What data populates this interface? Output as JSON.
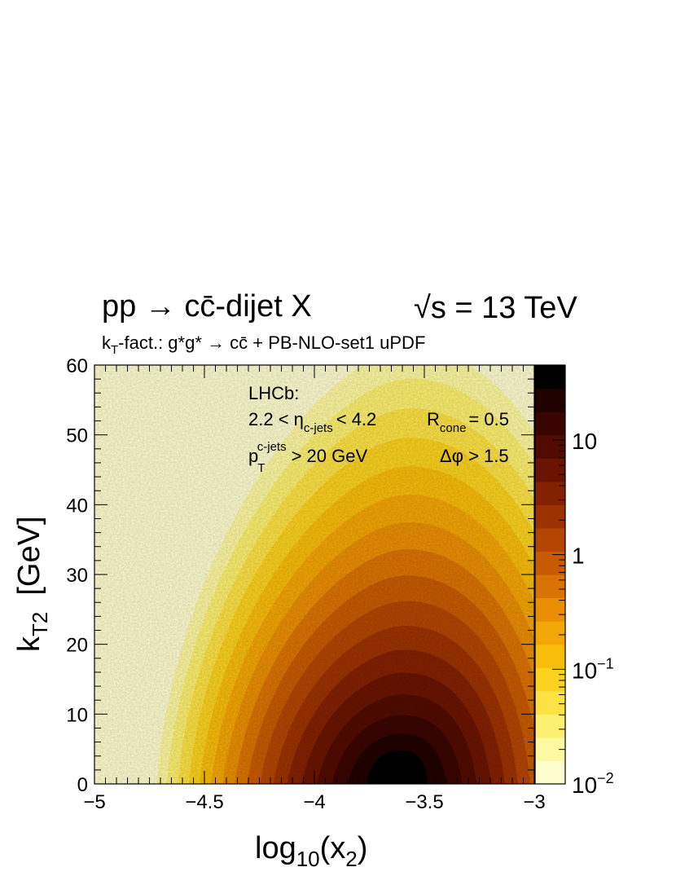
{
  "chart_data": {
    "type": "heatmap",
    "title": {
      "process_a": "pp",
      "arrow": "→",
      "process_b": "cc̄-dijet X",
      "energy_a": "√s",
      "energy_b": "= 13 TeV"
    },
    "subtitle": {
      "k": "k",
      "k_sub": "T",
      "rest": "-fact.: g*g*",
      "arrow": "→",
      "proc": "cc̄ + PB-NLO-set1 uPDF"
    },
    "annotations": {
      "experiment": "LHCb:",
      "eta_left": "2.2 < η",
      "eta_sub": "c-jets",
      "eta_right": "< 4.2",
      "rcone": "R",
      "rcone_sub": "cone",
      "rcone_value": "= 0.5",
      "pt": "p",
      "pt_sub": "T",
      "pt_sup": "c-jets",
      "pt_value": "> 20 GeV",
      "dphi": "Δφ > 1.5"
    },
    "xlabel": {
      "base": "log",
      "sub1": "10",
      "open": "(x",
      "sub2": "2",
      "close": ")"
    },
    "ylabel": {
      "base": "k",
      "sub": "T2",
      "unit": "[GeV]"
    },
    "xlim": [
      -5,
      -3
    ],
    "ylim": [
      0,
      60
    ],
    "x_ticks": [
      "−5",
      "−4.5",
      "−4",
      "−3.5",
      "−3"
    ],
    "x_tick_values": [
      -5,
      -4.5,
      -4,
      -3.5,
      -3
    ],
    "y_ticks": [
      "0",
      "10",
      "20",
      "30",
      "40",
      "50",
      "60"
    ],
    "y_tick_values": [
      0,
      10,
      20,
      30,
      40,
      50,
      60
    ],
    "z_scale": "log",
    "zlim": [
      0.01,
      45
    ],
    "z_ticks": [
      {
        "base": "10",
        "exp": "−2",
        "value": 0.01
      },
      {
        "base": "10",
        "exp": "−1",
        "value": 0.1
      },
      {
        "base": "1",
        "exp": "",
        "value": 1
      },
      {
        "base": "10",
        "exp": "",
        "value": 10
      }
    ],
    "peak": {
      "x": -3.62,
      "y": 3,
      "z": 40
    },
    "colormap": [
      "#fefdcf",
      "#fef8a0",
      "#fdf070",
      "#fde245",
      "#fbd21e",
      "#f8bd0a",
      "#f3a605",
      "#ea8e04",
      "#db7303",
      "#c85a02",
      "#b44502",
      "#9c3201",
      "#832101",
      "#6a1401",
      "#520b00",
      "#3a0500",
      "#200200",
      "#000000"
    ]
  }
}
